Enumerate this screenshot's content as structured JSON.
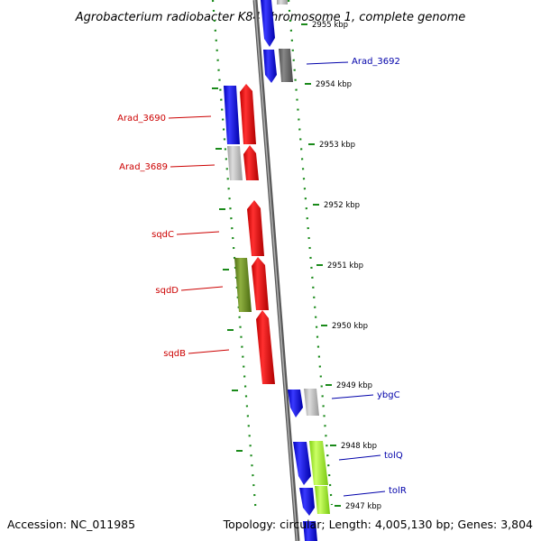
{
  "title": "Agrobacterium radiobacter K84 chromosome 1, complete genome",
  "footer": {
    "accession": "Accession: NC_011985",
    "topology": "Topology: circular; Length: 4,005,130 bp; Genes: 3,804"
  },
  "ticks": [
    {
      "label": "2955 kbp"
    },
    {
      "label": "2954 kbp"
    },
    {
      "label": "2953 kbp"
    },
    {
      "label": "2952 kbp"
    },
    {
      "label": "2951 kbp"
    },
    {
      "label": "2950 kbp"
    },
    {
      "label": "2949 kbp"
    },
    {
      "label": "2948 kbp"
    },
    {
      "label": "2947 kbp"
    }
  ],
  "gene_labels": [
    {
      "label": "Arad_3692",
      "color": "#0000aa"
    },
    {
      "label": "Arad_3690",
      "color": "#cc0000"
    },
    {
      "label": "Arad_3689",
      "color": "#cc0000"
    },
    {
      "label": "sqdC",
      "color": "#cc0000"
    },
    {
      "label": "sqdD",
      "color": "#cc0000"
    },
    {
      "label": "sqdB",
      "color": "#cc0000"
    },
    {
      "label": "ybgC",
      "color": "#0000aa"
    },
    {
      "label": "tolQ",
      "color": "#0000aa"
    },
    {
      "label": "tolR",
      "color": "#0000aa"
    }
  ],
  "colors": {
    "backbone": "#808080",
    "tick_green": "#1a8a1a",
    "blue_gene": "#0000ee",
    "red_gene": "#ee0000",
    "gray_gene": "#bbbbbb",
    "olive_gene": "#6b8e23",
    "lime_gene": "#aaff33"
  }
}
